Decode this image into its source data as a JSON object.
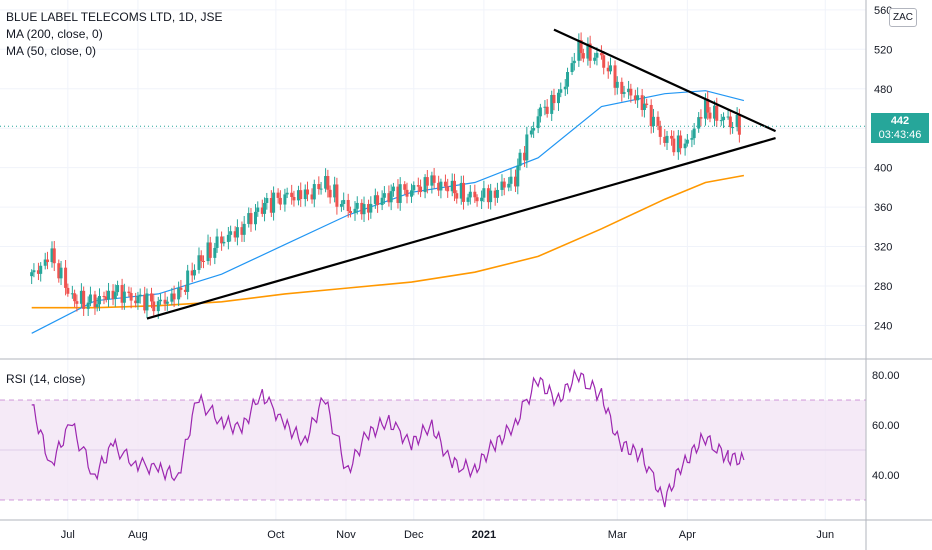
{
  "header": {
    "title": "BLUE LABEL TELECOMS LTD, 1D, JSE",
    "ma200_label": "MA (200, close, 0)",
    "ma50_label": "MA (50, close, 0)",
    "rsi_label": "RSI (14, close)",
    "currency": "ZAC"
  },
  "last_price": {
    "value": "442",
    "countdown": "03:43:46"
  },
  "colors": {
    "up": "#26a69a",
    "down": "#ef5350",
    "ma50": "#2196f3",
    "ma200": "#ff9800",
    "rsi": "#9c27b0",
    "rsi_band": "#f3e5f5",
    "trendline": "#000000",
    "last_price_line": "#26a69a"
  },
  "chart_data": [
    {
      "type": "candlestick",
      "title": "BLUE LABEL TELECOMS LTD, 1D, JSE",
      "x_tick_labels": [
        "Jul",
        "Aug",
        "Oct",
        "Nov",
        "Dec",
        "2021",
        "Mar",
        "Apr",
        "Jun"
      ],
      "y_tick_labels": [
        "240",
        "280",
        "320",
        "360",
        "400",
        "440",
        "480",
        "520",
        "560"
      ],
      "ylim": [
        207,
        570
      ],
      "last_price": 442,
      "series": [
        {
          "name": "close",
          "x": [
            "2020-06-15",
            "2020-06-24",
            "2020-07-03",
            "2020-07-13",
            "2020-07-21",
            "2020-07-31",
            "2020-08-10",
            "2020-08-19",
            "2020-08-28",
            "2020-09-07",
            "2020-09-16",
            "2020-09-25",
            "2020-10-05",
            "2020-10-14",
            "2020-10-23",
            "2020-11-02",
            "2020-11-11",
            "2020-11-20",
            "2020-11-30",
            "2020-12-09",
            "2020-12-18",
            "2020-12-28",
            "2021-01-06",
            "2021-01-15",
            "2021-01-25",
            "2021-02-03",
            "2021-02-12",
            "2021-02-22",
            "2021-03-03",
            "2021-03-12",
            "2021-03-22",
            "2021-03-31",
            "2021-04-09",
            "2021-04-19",
            "2021-04-26"
          ],
          "values": [
            290,
            310,
            268,
            262,
            275,
            268,
            262,
            270,
            305,
            325,
            340,
            360,
            372,
            370,
            384,
            356,
            362,
            373,
            378,
            385,
            378,
            368,
            376,
            390,
            455,
            470,
            520,
            510,
            480,
            468,
            430,
            420,
            460,
            446,
            442
          ]
        },
        {
          "name": "MA (50, close, 0)",
          "x": [
            "2020-06-15",
            "2020-07-13",
            "2020-08-10",
            "2020-09-07",
            "2020-10-05",
            "2020-11-02",
            "2020-11-30",
            "2020-12-28",
            "2021-01-25",
            "2021-02-22",
            "2021-03-22",
            "2021-04-09",
            "2021-04-26"
          ],
          "values": [
            232,
            265,
            272,
            292,
            322,
            352,
            375,
            385,
            410,
            462,
            475,
            478,
            468
          ]
        },
        {
          "name": "MA (200, close, 0)",
          "x": [
            "2020-06-15",
            "2020-07-13",
            "2020-08-10",
            "2020-09-07",
            "2020-10-05",
            "2020-11-02",
            "2020-11-30",
            "2020-12-28",
            "2021-01-25",
            "2021-02-22",
            "2021-03-22",
            "2021-04-09",
            "2021-04-26"
          ],
          "values": [
            258,
            258,
            260,
            264,
            272,
            278,
            284,
            294,
            310,
            338,
            368,
            385,
            392
          ]
        }
      ]
    },
    {
      "type": "line",
      "title": "RSI (14, close)",
      "y_tick_labels": [
        "40.00",
        "60.00",
        "80.00"
      ],
      "ylim": [
        22,
        86
      ],
      "bands": [
        30,
        70
      ],
      "series": [
        {
          "name": "RSI (14, close)",
          "x": [
            "2020-06-15",
            "2020-06-24",
            "2020-07-03",
            "2020-07-13",
            "2020-07-21",
            "2020-07-31",
            "2020-08-10",
            "2020-08-19",
            "2020-08-28",
            "2020-09-07",
            "2020-09-16",
            "2020-09-25",
            "2020-10-05",
            "2020-10-14",
            "2020-10-23",
            "2020-11-02",
            "2020-11-11",
            "2020-11-20",
            "2020-11-30",
            "2020-12-09",
            "2020-12-18",
            "2020-12-28",
            "2021-01-06",
            "2021-01-15",
            "2021-01-25",
            "2021-02-03",
            "2021-02-12",
            "2021-02-22",
            "2021-03-03",
            "2021-03-12",
            "2021-03-22",
            "2021-03-31",
            "2021-04-09",
            "2021-04-19",
            "2021-04-26"
          ],
          "values": [
            68,
            45,
            60,
            40,
            52,
            45,
            42,
            40,
            70,
            62,
            58,
            73,
            60,
            54,
            70,
            42,
            56,
            62,
            52,
            60,
            45,
            42,
            52,
            60,
            78,
            70,
            80,
            72,
            52,
            48,
            30,
            45,
            55,
            47,
            46
          ]
        }
      ]
    }
  ]
}
